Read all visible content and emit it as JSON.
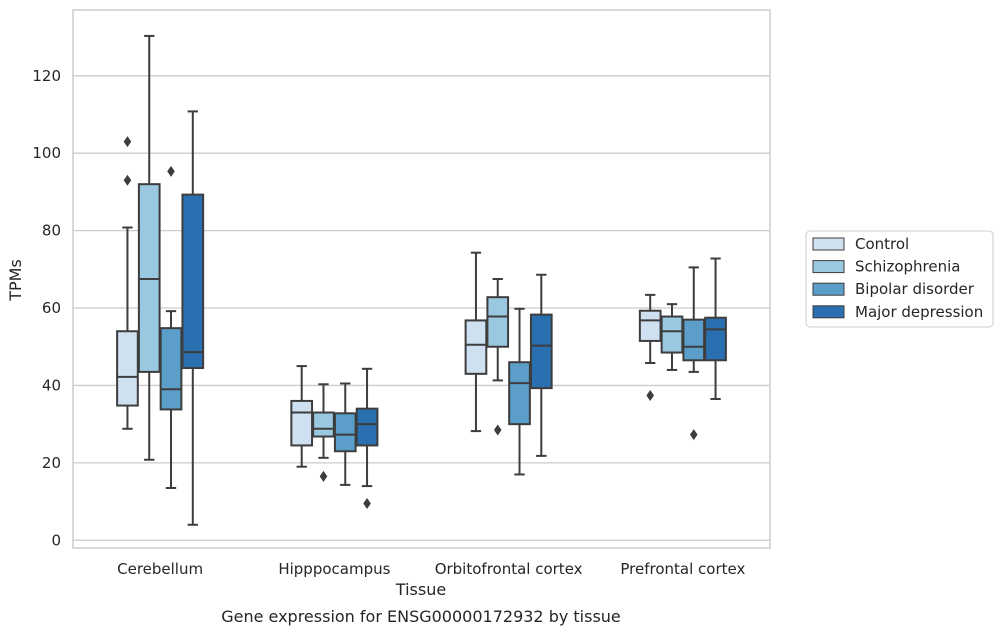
{
  "chart_data": {
    "type": "box",
    "title": "",
    "xlabel": "Tissue",
    "ylabel": "TPMs",
    "caption": "Gene expression for ENSG00000172932 by tissue",
    "ylim": [
      -2,
      137
    ],
    "yticks": [
      0,
      20,
      40,
      60,
      80,
      100,
      120
    ],
    "grid": "horizontal",
    "legend_position": "right",
    "categories": [
      "Cerebellum",
      "Hipppocampus",
      "Orbitofrontal cortex",
      "Prefrontal cortex"
    ],
    "series": [
      {
        "name": "Control",
        "color": "#cfe0f1",
        "boxes": [
          {
            "whisker_low": 28.8,
            "q1": 34.8,
            "median": 42.2,
            "q3": 54.0,
            "whisker_high": 80.8,
            "outliers": [
              93.0,
              103.0
            ]
          },
          {
            "whisker_low": 19.0,
            "q1": 24.5,
            "median": 33.0,
            "q3": 36.0,
            "whisker_high": 45.0,
            "outliers": []
          },
          {
            "whisker_low": 28.2,
            "q1": 43.0,
            "median": 50.5,
            "q3": 56.8,
            "whisker_high": 74.3,
            "outliers": []
          },
          {
            "whisker_low": 45.8,
            "q1": 51.5,
            "median": 56.8,
            "q3": 59.3,
            "whisker_high": 63.4,
            "outliers": [
              37.4
            ]
          }
        ]
      },
      {
        "name": "Schizophrenia",
        "color": "#9ac8e0",
        "boxes": [
          {
            "whisker_low": 20.8,
            "q1": 43.5,
            "median": 67.5,
            "q3": 92.0,
            "whisker_high": 130.3,
            "outliers": []
          },
          {
            "whisker_low": 21.3,
            "q1": 26.8,
            "median": 28.8,
            "q3": 33.0,
            "whisker_high": 40.3,
            "outliers": [
              16.5
            ]
          },
          {
            "whisker_low": 41.3,
            "q1": 50.0,
            "median": 57.8,
            "q3": 62.8,
            "whisker_high": 67.5,
            "outliers": [
              28.5
            ]
          },
          {
            "whisker_low": 44.0,
            "q1": 48.5,
            "median": 54.0,
            "q3": 57.8,
            "whisker_high": 61.0,
            "outliers": []
          }
        ]
      },
      {
        "name": "Bipolar disorder",
        "color": "#5a9ec9",
        "boxes": [
          {
            "whisker_low": 13.5,
            "q1": 33.8,
            "median": 39.0,
            "q3": 54.8,
            "whisker_high": 59.2,
            "outliers": [
              95.3
            ]
          },
          {
            "whisker_low": 14.3,
            "q1": 23.0,
            "median": 27.3,
            "q3": 32.8,
            "whisker_high": 40.5,
            "outliers": []
          },
          {
            "whisker_low": 17.0,
            "q1": 30.0,
            "median": 40.6,
            "q3": 46.0,
            "whisker_high": 59.8,
            "outliers": []
          },
          {
            "whisker_low": 43.5,
            "q1": 46.5,
            "median": 50.0,
            "q3": 57.0,
            "whisker_high": 70.5,
            "outliers": [
              27.3
            ]
          }
        ]
      },
      {
        "name": "Major depression",
        "color": "#2a70b1",
        "boxes": [
          {
            "whisker_low": 4.0,
            "q1": 44.5,
            "median": 48.6,
            "q3": 89.3,
            "whisker_high": 110.8,
            "outliers": []
          },
          {
            "whisker_low": 14.0,
            "q1": 24.5,
            "median": 30.0,
            "q3": 34.0,
            "whisker_high": 44.3,
            "outliers": [
              9.5
            ]
          },
          {
            "whisker_low": 21.8,
            "q1": 39.3,
            "median": 50.3,
            "q3": 58.3,
            "whisker_high": 68.6,
            "outliers": []
          },
          {
            "whisker_low": 36.5,
            "q1": 46.5,
            "median": 54.5,
            "q3": 57.5,
            "whisker_high": 72.8,
            "outliers": []
          }
        ]
      }
    ]
  }
}
